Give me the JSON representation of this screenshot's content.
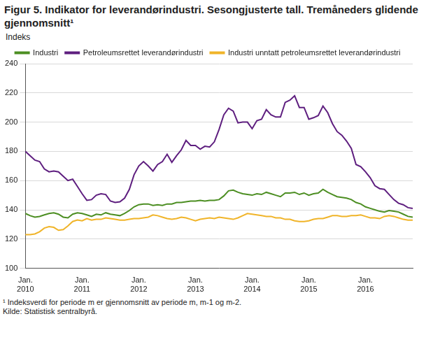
{
  "chart_data": {
    "type": "line",
    "title": "Figur 5. Indikator for leverandørindustri. Sesongjusterte tall. Tremåneders glidende gjennomsnitt¹",
    "y_label": "Indeks",
    "footnote": "¹ Indeksverdi for periode m er gjennomsnitt av periode m, m-1 og m-2.",
    "source": "Kilde: Statistisk sentralbyrå.",
    "categories": [
      "Jan. 2010",
      null,
      null,
      null,
      null,
      null,
      null,
      null,
      null,
      null,
      null,
      null,
      "Jan. 2011",
      null,
      null,
      null,
      null,
      null,
      null,
      null,
      null,
      null,
      null,
      null,
      "Jan. 2012",
      null,
      null,
      null,
      null,
      null,
      null,
      null,
      null,
      null,
      null,
      null,
      "Jan. 2013",
      null,
      null,
      null,
      null,
      null,
      null,
      null,
      null,
      null,
      null,
      null,
      "Jan. 2014",
      null,
      null,
      null,
      null,
      null,
      null,
      null,
      null,
      null,
      null,
      null,
      "Jan. 2015",
      null,
      null,
      null,
      null,
      null,
      null,
      null,
      null,
      null,
      null,
      null,
      "Jan. 2016",
      null,
      null,
      null,
      null,
      null,
      null,
      null,
      null,
      null,
      null
    ],
    "series": [
      {
        "name": "Industri",
        "color": "#4c8e22",
        "values": [
          137.5,
          136,
          135,
          135.5,
          136.5,
          137.5,
          138,
          137,
          135,
          134.5,
          137,
          138,
          137.5,
          136.5,
          135.5,
          137,
          136.5,
          138,
          137,
          136.5,
          136,
          137.5,
          139.5,
          142,
          143.5,
          144,
          144,
          143,
          143.5,
          143,
          144,
          144,
          145,
          145,
          145.5,
          146,
          146,
          146.5,
          146,
          146.5,
          146.5,
          147,
          149.5,
          153,
          153.5,
          152,
          151,
          150.5,
          150,
          151,
          150.5,
          152,
          151,
          150,
          149,
          151.5,
          151.5,
          152,
          150.5,
          151.5,
          150,
          151,
          151.5,
          154,
          152,
          150.5,
          149,
          148.5,
          148,
          147,
          145,
          144,
          142,
          141,
          140,
          139,
          138.5,
          139.5,
          139,
          138.5,
          137,
          135.5,
          135
        ]
      },
      {
        "name": "Petroleumsrettet leverandørindustri",
        "color": "#5e1e7f",
        "values": [
          180,
          177,
          174,
          173,
          168,
          166,
          166.5,
          166,
          163,
          160,
          161,
          156,
          151,
          146.5,
          147,
          150,
          151,
          150.5,
          146,
          145,
          145.5,
          148,
          154,
          164,
          170,
          173,
          170,
          166.5,
          171,
          173,
          178,
          172.5,
          177,
          181,
          187.5,
          184,
          184,
          181.5,
          183.5,
          183,
          186.5,
          195,
          205,
          209.5,
          207.5,
          199.5,
          200,
          200,
          195.5,
          201,
          202,
          208.5,
          205,
          203.5,
          203.5,
          213.5,
          215,
          218,
          210,
          210,
          202,
          203,
          204.5,
          211,
          206.5,
          199,
          193.5,
          191,
          187,
          182,
          171,
          169.5,
          166,
          162,
          156.5,
          154.5,
          154,
          150.5,
          147,
          144.5,
          143.5,
          141.5,
          141
        ]
      },
      {
        "name": "Industri unntatt petroleumsrettet leverandørindustri",
        "color": "#f0b429",
        "values": [
          123,
          123,
          123.5,
          125,
          127.5,
          128.5,
          128,
          126,
          126.5,
          129,
          132,
          133,
          132.5,
          134,
          133,
          133.5,
          133.5,
          134.5,
          134,
          133.5,
          133,
          133,
          133.5,
          134,
          134,
          134.5,
          135,
          136.5,
          136,
          135,
          134,
          133.5,
          134,
          135,
          134.5,
          133.5,
          132.5,
          133.5,
          134,
          134.5,
          134,
          135,
          134.5,
          134,
          133.5,
          134.5,
          136,
          137.5,
          137,
          136.5,
          136,
          135.5,
          135.5,
          134.5,
          134.5,
          133.5,
          133.5,
          132.5,
          132,
          132,
          132.5,
          133.5,
          134,
          134,
          135,
          136,
          136,
          135.5,
          135.5,
          136,
          136,
          136.5,
          135.5,
          134.5,
          134.5,
          134,
          135.5,
          136,
          135.5,
          134.5,
          133.5,
          133,
          133
        ]
      }
    ],
    "ylim": [
      100,
      240
    ],
    "yticks": [
      100,
      120,
      140,
      160,
      180,
      200,
      220,
      240
    ],
    "grid": true,
    "legend": "top"
  }
}
